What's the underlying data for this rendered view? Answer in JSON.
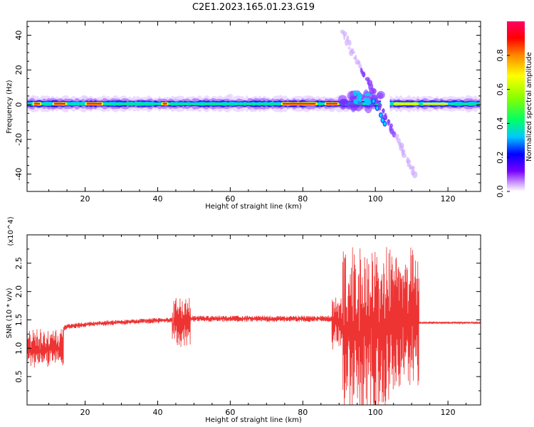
{
  "title": "C2E1.2023.165.01.23.G19",
  "chart_data": [
    {
      "type": "heatmap",
      "title": "C2E1.2023.165.01.23.G19",
      "xlabel": "Height of straight line (km)",
      "ylabel": "Frequency (Hz)",
      "xlim": [
        4,
        129
      ],
      "ylim": [
        -50,
        48
      ],
      "x_ticks": [
        20,
        40,
        60,
        80,
        100,
        120
      ],
      "y_ticks": [
        -40,
        -20,
        0,
        20,
        40
      ],
      "colorbar": {
        "label": "Normalized spectral amplitude",
        "range": [
          0.0,
          1.0
        ],
        "ticks": [
          "0.0",
          "0.2",
          "0.4",
          "0.6",
          "0.8"
        ],
        "colors": [
          "#ffffff",
          "#cc99ff",
          "#7700ff",
          "#0000ff",
          "#00c8ff",
          "#00ff66",
          "#88ff00",
          "#ffff00",
          "#ff8800",
          "#ff0000",
          "#ff0066"
        ]
      },
      "features": [
        {
          "name": "main spectral line",
          "x_range": [
            4,
            129
          ],
          "freq": 0.5,
          "peak_amplitude": 0.95
        },
        {
          "name": "descending trace",
          "x_start": 91,
          "x_end": 111,
          "freq_start": 42,
          "freq_end": -41
        }
      ]
    },
    {
      "type": "line",
      "title": "",
      "xlabel": "Height of straight line (km)",
      "ylabel": "SNR (10 * v/v)",
      "y_multiplier": "(x10^4)",
      "xlim": [
        4,
        129
      ],
      "ylim": [
        0.0,
        3.0
      ],
      "x_ticks": [
        20,
        40,
        60,
        80,
        100,
        120
      ],
      "y_ticks": [
        "0.5",
        "1.0",
        "1.5",
        "2.0",
        "2.5"
      ],
      "series_color": "#ee3333",
      "segments": [
        {
          "x_range": [
            4,
            14
          ],
          "baseline": 1.0,
          "amplitude": 0.35
        },
        {
          "x_range": [
            14,
            44
          ],
          "baseline": 1.35,
          "amplitude": 0.05,
          "trend_to": 1.5
        },
        {
          "x_range": [
            44,
            49
          ],
          "baseline": 1.45,
          "amplitude": 0.45
        },
        {
          "x_range": [
            49,
            88
          ],
          "baseline": 1.52,
          "amplitude": 0.06
        },
        {
          "x_range": [
            88,
            91
          ],
          "baseline": 1.45,
          "amplitude": 0.5
        },
        {
          "x_range": [
            91,
            104
          ],
          "baseline": 1.3,
          "amplitude": 1.6
        },
        {
          "x_range": [
            104,
            112
          ],
          "baseline": 1.5,
          "amplitude": 1.3
        },
        {
          "x_range": [
            112,
            129
          ],
          "baseline": 1.45,
          "amplitude": 0.02
        }
      ]
    }
  ]
}
